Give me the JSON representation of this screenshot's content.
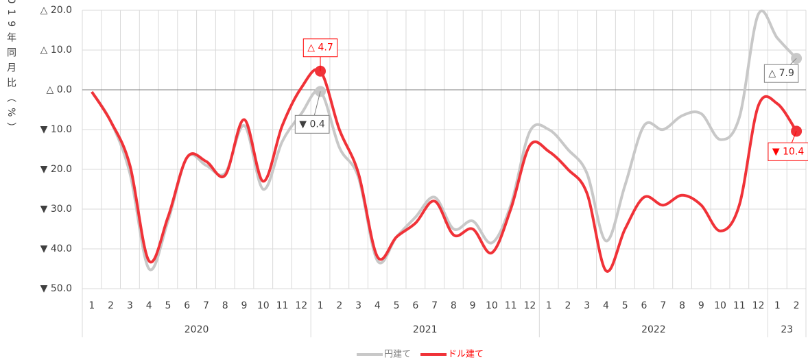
{
  "chart_data": {
    "type": "line",
    "y_axis_label": "2019年同月比（%）",
    "categories": [
      "1",
      "2",
      "3",
      "4",
      "5",
      "6",
      "7",
      "8",
      "9",
      "10",
      "11",
      "12",
      "1",
      "2",
      "3",
      "4",
      "5",
      "6",
      "7",
      "8",
      "9",
      "10",
      "11",
      "12",
      "1",
      "2",
      "3",
      "4",
      "5",
      "6",
      "7",
      "8",
      "9",
      "10",
      "11",
      "12",
      "1",
      "2"
    ],
    "groups": [
      {
        "label": "2020",
        "count": 12
      },
      {
        "label": "2021",
        "count": 12
      },
      {
        "label": "2022",
        "count": 12
      },
      {
        "label": "23",
        "count": 2
      }
    ],
    "series": [
      {
        "name": "円建て",
        "color": "#c8c8c8",
        "values": [
          -0.5,
          -8,
          -21,
          -45,
          -33,
          -17,
          -19,
          -21,
          -9,
          -25,
          -13,
          -6,
          -0.4,
          -14.5,
          -22,
          -43,
          -37,
          -32,
          -27,
          -35,
          -33,
          -38.5,
          -29,
          -10.5,
          -10,
          -15,
          -21,
          -38,
          -24,
          -9,
          -10,
          -6.5,
          -6,
          -12.5,
          -7,
          19,
          13,
          7.9
        ],
        "value_labels": [
          null,
          null,
          null,
          null,
          null,
          null,
          null,
          null,
          null,
          null,
          null,
          null,
          "▼ 0.4",
          null,
          null,
          null,
          null,
          null,
          null,
          null,
          null,
          null,
          null,
          null,
          null,
          null,
          null,
          null,
          null,
          null,
          null,
          null,
          null,
          null,
          null,
          null,
          null,
          "△ 7.9"
        ]
      },
      {
        "name": "ドル建て",
        "color": "#f03238",
        "values": [
          -0.5,
          -8,
          -19,
          -43,
          -32,
          -17,
          -18,
          -21.5,
          -7.5,
          -23,
          -9,
          0.5,
          4.7,
          -10,
          -21,
          -42,
          -37,
          -33.5,
          -28,
          -36.5,
          -35,
          -41,
          -30,
          -14,
          -15.5,
          -20,
          -26,
          -45.5,
          -35,
          -27,
          -29,
          -26.5,
          -29,
          -35.5,
          -29,
          -4,
          -3.5,
          -10.4
        ],
        "value_labels": [
          null,
          null,
          null,
          null,
          null,
          null,
          null,
          null,
          null,
          null,
          null,
          null,
          "△ 4.7",
          null,
          null,
          null,
          null,
          null,
          null,
          null,
          null,
          null,
          null,
          null,
          null,
          null,
          null,
          null,
          null,
          null,
          null,
          null,
          null,
          null,
          null,
          null,
          null,
          "▼ 10.4"
        ]
      }
    ],
    "ylim": [
      -50,
      20
    ],
    "yticks": [
      {
        "value": 20,
        "label": "△ 20.0"
      },
      {
        "value": 10,
        "label": "△ 10.0"
      },
      {
        "value": 0,
        "label": "△ 0.0"
      },
      {
        "value": -10,
        "label": "▼ 10.0"
      },
      {
        "value": -20,
        "label": "▼ 20.0"
      },
      {
        "value": -30,
        "label": "▼ 30.0"
      },
      {
        "value": -40,
        "label": "▼ 40.0"
      },
      {
        "value": -50,
        "label": "▼ 50.0"
      }
    ],
    "grid": true,
    "legend": "bottom"
  }
}
